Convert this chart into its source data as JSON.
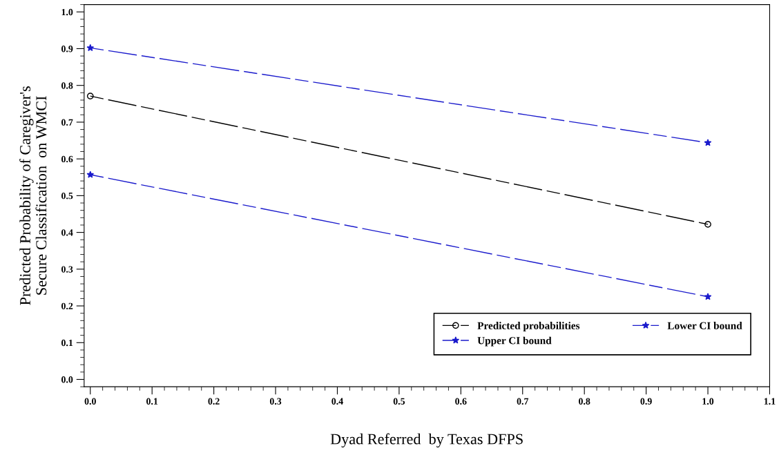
{
  "chart_data": {
    "type": "line",
    "xlabel": "Dyad Referred  by Texas DFPS",
    "ylabel": "Predicted Probability of Caregiver's\nSecure Classification  on WMCI",
    "x": [
      0,
      1
    ],
    "series": [
      {
        "name": "Predicted probabilities",
        "color": "#000000",
        "values": [
          0.771,
          0.422
        ],
        "marker": "circle"
      },
      {
        "name": "Upper CI bound",
        "color": "#1a1acc",
        "values": [
          0.902,
          0.644
        ],
        "marker": "star"
      },
      {
        "name": "Lower CI bound",
        "color": "#1a1acc",
        "values": [
          0.557,
          0.225
        ],
        "marker": "star"
      }
    ],
    "xlim": [
      -0.01,
      1.1
    ],
    "ylim": [
      -0.02,
      1.02
    ],
    "xticks": [
      {
        "value": 0,
        "label": "0.0"
      },
      0.1,
      0.2,
      0.3,
      0.4,
      0.5,
      0.6,
      0.7,
      0.8,
      0.9,
      {
        "value": 1,
        "label": "1.0"
      },
      1.1
    ],
    "yticks": [
      {
        "value": 0,
        "label": "0.0"
      },
      0.1,
      0.2,
      0.3,
      0.4,
      0.5,
      0.6,
      0.7,
      0.8,
      0.9,
      {
        "value": 1,
        "label": "1.0"
      }
    ],
    "line_style": "dashed",
    "grid": false,
    "legend": "bottom right"
  }
}
